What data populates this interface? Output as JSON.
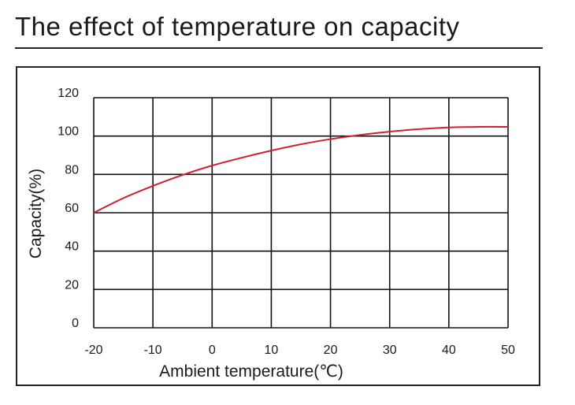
{
  "header": {
    "title": "The effect of temperature on capacity"
  },
  "chart_data": {
    "type": "line",
    "title": "The effect of temperature on capacity",
    "xlabel": "Ambient temperature(℃)",
    "ylabel": "Capacity(%)",
    "xlim": [
      -20,
      50
    ],
    "ylim": [
      0,
      120
    ],
    "xticks": [
      -20,
      -10,
      0,
      10,
      20,
      30,
      40,
      50
    ],
    "yticks": [
      0,
      20,
      40,
      60,
      80,
      100,
      120
    ],
    "grid": true,
    "series": [
      {
        "name": "Capacity",
        "color": "#d0202e",
        "x": [
          -20,
          -15,
          -10,
          -5,
          0,
          5,
          10,
          15,
          20,
          25,
          30,
          35,
          40,
          45,
          50
        ],
        "y": [
          60,
          67.6,
          74,
          79.7,
          84.6,
          88.7,
          92.4,
          95.7,
          98.4,
          100.6,
          102.3,
          103.6,
          104.5,
          104.8,
          104.8
        ]
      }
    ]
  }
}
